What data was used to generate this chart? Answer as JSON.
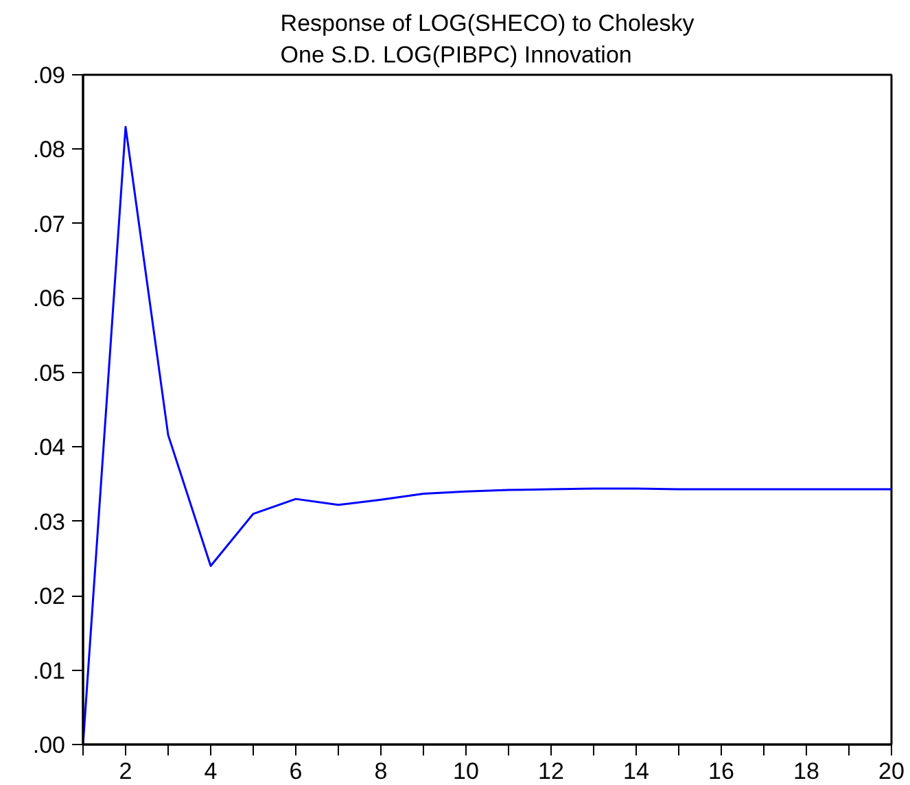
{
  "chart_data": {
    "type": "line",
    "title": "Response of LOG(SHECO) to Cholesky\nOne S.D. LOG(PIBPC) Innovation",
    "x": [
      1,
      2,
      3,
      4,
      5,
      6,
      7,
      8,
      9,
      10,
      11,
      12,
      13,
      14,
      15,
      16,
      17,
      18,
      19,
      20
    ],
    "series": [
      {
        "color": "#0000ff",
        "values": [
          0.0,
          0.083,
          0.0416,
          0.024,
          0.031,
          0.033,
          0.0322,
          0.0329,
          0.0337,
          0.034,
          0.0342,
          0.0343,
          0.0344,
          0.0344,
          0.0343,
          0.0343,
          0.0343,
          0.0343,
          0.0343,
          0.0343
        ]
      }
    ],
    "xlim": [
      1,
      20
    ],
    "xticks": [
      {
        "value": 1,
        "label": null
      },
      2,
      {
        "value": 3,
        "label": null
      },
      4,
      {
        "value": 5,
        "label": null
      },
      6,
      {
        "value": 7,
        "label": null
      },
      8,
      {
        "value": 9,
        "label": null
      },
      10,
      {
        "value": 11,
        "label": null
      },
      12,
      {
        "value": 13,
        "label": null
      },
      14,
      {
        "value": 15,
        "label": null
      },
      16,
      {
        "value": 17,
        "label": null
      },
      18,
      {
        "value": 19,
        "label": null
      },
      20
    ],
    "ylim": [
      0,
      0.09
    ],
    "yticks": [
      {
        "value": 0,
        "label": ".00"
      },
      {
        "value": 0.01,
        "label": ".01"
      },
      {
        "value": 0.02,
        "label": ".02"
      },
      {
        "value": 0.03,
        "label": ".03"
      },
      {
        "value": 0.04,
        "label": ".04"
      },
      {
        "value": 0.05,
        "label": ".05"
      },
      {
        "value": 0.06,
        "label": ".06"
      },
      {
        "value": 0.07,
        "label": ".07"
      },
      {
        "value": 0.08,
        "label": ".08"
      },
      {
        "value": 0.09,
        "label": ".09"
      }
    ],
    "grid": false,
    "marker": "none",
    "line_style": "solid"
  }
}
